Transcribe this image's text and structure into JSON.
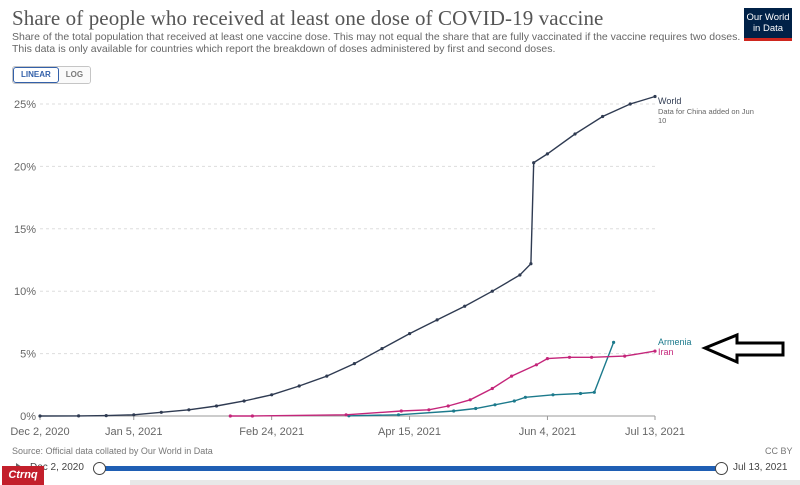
{
  "header": {
    "title": "Share of people who received at least one dose of COVID-19 vaccine",
    "subtitle_lines": [
      "Share of the total population that received at least one vaccine dose. This may not equal the share that are fully vaccinated if the vaccine requires two doses.",
      "This data is only available for countries which report the breakdown of doses administered by first and second doses."
    ],
    "logo_lines": [
      "Our World",
      "in Data"
    ]
  },
  "scale_toggle": {
    "linear_label": "LINEAR",
    "log_label": "LOG",
    "selected": "LINEAR"
  },
  "footer": {
    "source": "Source: Official data collated by Our World in Data",
    "license": "CC BY"
  },
  "timeline": {
    "start_label": "Dec 2, 2020",
    "end_label": "Jul 13, 2021"
  },
  "watermark": "CTRNQ",
  "colors": {
    "world": "#2f3b52",
    "armenia": "#1c7a8c",
    "iran": "#c4257a",
    "grid": "#dddddd",
    "axis_text": "#666666",
    "arrow": "#000000"
  },
  "chart_data": {
    "type": "line",
    "title": "Share of people who received at least one dose of COVID-19 vaccine",
    "xlabel": "",
    "ylabel": "",
    "x_range_days": [
      0,
      223
    ],
    "ylim": [
      0,
      25
    ],
    "x_ticks": [
      {
        "day": 0,
        "label": "Dec 2, 2020"
      },
      {
        "day": 34,
        "label": "Jan 5, 2021"
      },
      {
        "day": 84,
        "label": "Feb 24, 2021"
      },
      {
        "day": 134,
        "label": "Apr 15, 2021"
      },
      {
        "day": 184,
        "label": "Jun 4, 2021"
      },
      {
        "day": 223,
        "label": "Jul 13, 2021"
      }
    ],
    "y_ticks": [
      {
        "value": 0,
        "label": "0%"
      },
      {
        "value": 5,
        "label": "5%"
      },
      {
        "value": 10,
        "label": "10%"
      },
      {
        "value": 15,
        "label": "15%"
      },
      {
        "value": 20,
        "label": "20%"
      },
      {
        "value": 25,
        "label": "25%"
      }
    ],
    "series": [
      {
        "name": "World",
        "note_lines": [
          "Data for China added on Jun",
          "10"
        ],
        "color": "#2f3b52",
        "points": [
          [
            0,
            0
          ],
          [
            14,
            0.01
          ],
          [
            24,
            0.03
          ],
          [
            34,
            0.1
          ],
          [
            44,
            0.3
          ],
          [
            54,
            0.5
          ],
          [
            64,
            0.8
          ],
          [
            74,
            1.2
          ],
          [
            84,
            1.7
          ],
          [
            94,
            2.4
          ],
          [
            104,
            3.2
          ],
          [
            114,
            4.2
          ],
          [
            124,
            5.4
          ],
          [
            134,
            6.6
          ],
          [
            144,
            7.7
          ],
          [
            154,
            8.8
          ],
          [
            164,
            10.0
          ],
          [
            174,
            11.3
          ],
          [
            178,
            12.2
          ],
          [
            179,
            20.3
          ],
          [
            184,
            21.0
          ],
          [
            194,
            22.6
          ],
          [
            204,
            24.0
          ],
          [
            214,
            25.0
          ],
          [
            223,
            25.6
          ]
        ]
      },
      {
        "name": "Armenia",
        "color": "#1c7a8c",
        "points": [
          [
            112,
            0.02
          ],
          [
            130,
            0.1
          ],
          [
            150,
            0.4
          ],
          [
            158,
            0.6
          ],
          [
            165,
            0.9
          ],
          [
            172,
            1.2
          ],
          [
            176,
            1.5
          ],
          [
            186,
            1.7
          ],
          [
            196,
            1.8
          ],
          [
            201,
            1.9
          ],
          [
            208,
            5.9
          ]
        ]
      },
      {
        "name": "Iran",
        "color": "#c4257a",
        "points": [
          [
            69,
            0
          ],
          [
            77,
            0
          ],
          [
            111,
            0.1
          ],
          [
            131,
            0.4
          ],
          [
            141,
            0.5
          ],
          [
            148,
            0.8
          ],
          [
            156,
            1.3
          ],
          [
            164,
            2.2
          ],
          [
            171,
            3.2
          ],
          [
            180,
            4.1
          ],
          [
            184,
            4.6
          ],
          [
            192,
            4.7
          ],
          [
            200,
            4.7
          ],
          [
            212,
            4.8
          ],
          [
            223,
            5.2
          ]
        ]
      }
    ]
  }
}
